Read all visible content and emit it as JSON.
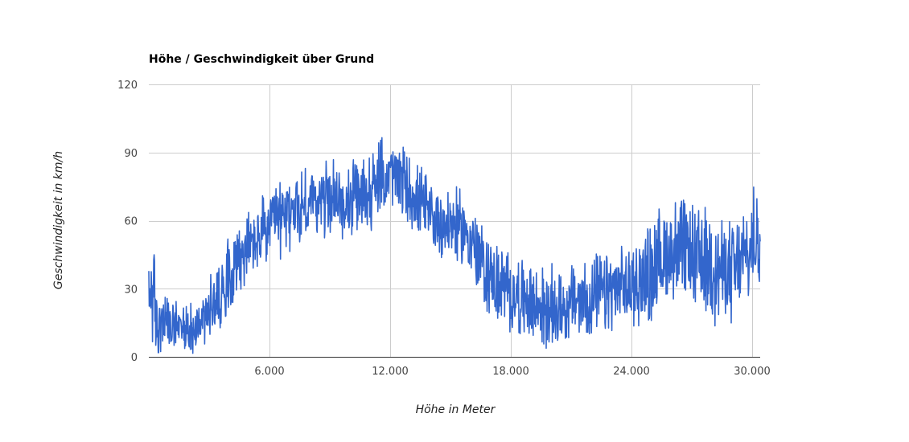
{
  "colors": {
    "series": "#3366cc",
    "grid": "#cccccc",
    "baseline": "#333333"
  },
  "chart_data": {
    "type": "line",
    "title": "Höhe / Geschwindigkeit über Grund",
    "xlabel": "Höhe in Meter",
    "ylabel": "Geschwindigkeit in km/h",
    "xlim": [
      0,
      30400
    ],
    "ylim": [
      0,
      120
    ],
    "x_ticks": [
      6000,
      12000,
      18000,
      24000,
      30000
    ],
    "x_tick_labels": [
      "6.000",
      "12.000",
      "18.000",
      "24.000",
      "30.000"
    ],
    "y_ticks": [
      0,
      30,
      60,
      90,
      120
    ],
    "y_tick_labels": [
      "0",
      "30",
      "60",
      "90",
      "120"
    ],
    "grid": true,
    "legend": "none",
    "series": [
      {
        "x": [
          0,
          150,
          300,
          500,
          800,
          1200,
          1600,
          2000,
          2400,
          2800,
          3200,
          3600,
          4000,
          4400,
          4800,
          5200,
          5600,
          6000,
          6400,
          6800,
          7200,
          7600,
          8000,
          8400,
          8800,
          9200,
          9600,
          10000,
          10400,
          10800,
          11200,
          11600,
          12000,
          12400,
          12800,
          13200,
          13600,
          14000,
          14400,
          14800,
          15200,
          15600,
          16000,
          16400,
          16800,
          17200,
          17600,
          18000,
          18400,
          18800,
          19200,
          19600,
          20000,
          20400,
          20800,
          21200,
          21600,
          22000,
          22400,
          22800,
          23200,
          23600,
          24000,
          24400,
          24800,
          25200,
          25600,
          26000,
          26400,
          26800,
          27200,
          27600,
          28000,
          28400,
          28800,
          29200,
          29600,
          30000,
          30400
        ],
        "values": [
          20,
          35,
          18,
          12,
          14,
          13,
          12,
          12,
          14,
          18,
          22,
          30,
          38,
          43,
          46,
          50,
          54,
          57,
          60,
          62,
          64,
          66,
          68,
          69,
          70,
          70,
          68,
          68,
          70,
          72,
          75,
          79,
          80,
          79,
          75,
          70,
          66,
          62,
          60,
          58,
          58,
          56,
          52,
          44,
          37,
          33,
          30,
          28,
          26,
          24,
          22,
          21,
          21,
          22,
          23,
          24,
          25,
          26,
          27,
          28,
          29,
          30,
          31,
          33,
          36,
          40,
          44,
          47,
          48,
          46,
          43,
          42,
          40,
          38,
          37,
          38,
          42,
          48,
          55
        ]
      }
    ]
  }
}
